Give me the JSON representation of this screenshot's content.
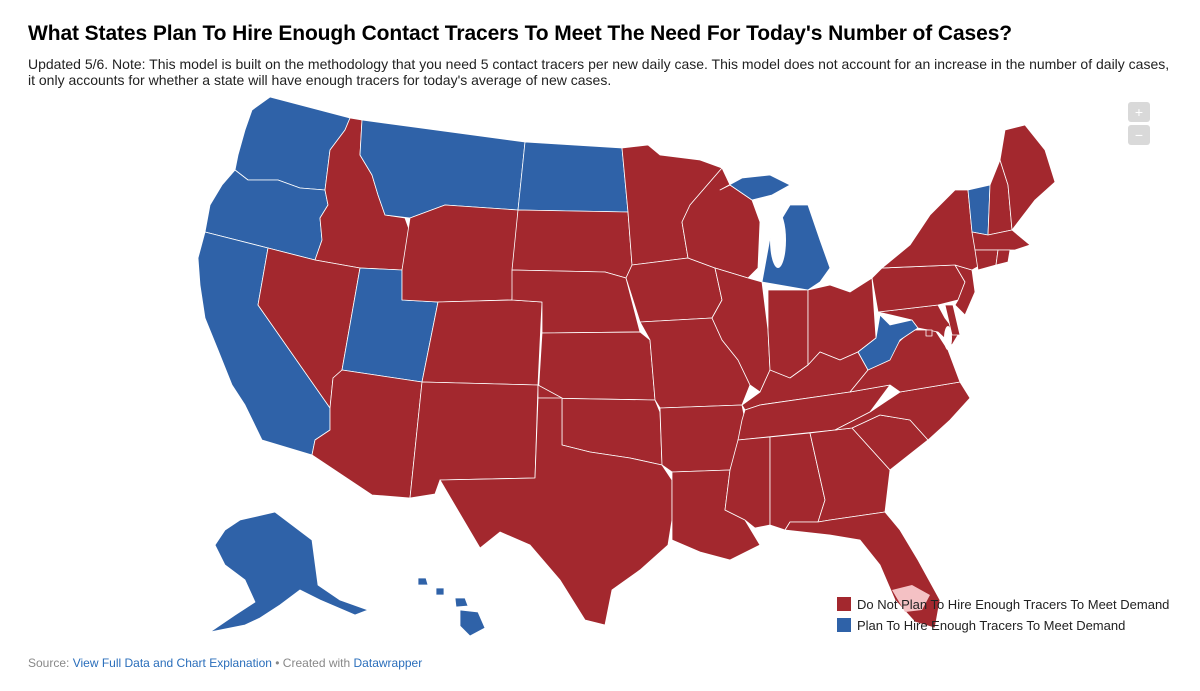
{
  "title": "What States Plan To Hire Enough Contact Tracers To Meet The Need For Today's Number of Cases?",
  "subtitle": "Updated 5/6. Note: This model is built on the methodology that you need 5 contact tracers per new daily case. This model does not account for an increase in the number of daily cases, it only accounts for whether a state will have enough tracers for today's average of new cases.",
  "colors": {
    "not_plan": "#a3282e",
    "plan": "#2f62a8",
    "border": "#ffffff",
    "zoom": "#d9d9d9"
  },
  "zoom": {
    "in_label": "+",
    "out_label": "−"
  },
  "legend": [
    {
      "label": "Do Not Plan To Hire Enough Tracers To Meet Demand",
      "color": "#a3282e"
    },
    {
      "label": "Plan To Hire Enough Tracers To Meet Demand",
      "color": "#2f62a8"
    }
  ],
  "states_planning": [
    "WA",
    "OR",
    "CA",
    "MT",
    "ND",
    "UT",
    "MI",
    "WV",
    "VT",
    "AK",
    "HI"
  ],
  "states_not_planning": [
    "ID",
    "NV",
    "AZ",
    "WY",
    "CO",
    "NM",
    "SD",
    "NE",
    "KS",
    "OK",
    "TX",
    "MN",
    "IA",
    "MO",
    "AR",
    "LA",
    "WI",
    "IL",
    "IN",
    "OH",
    "KY",
    "TN",
    "MS",
    "AL",
    "GA",
    "FL",
    "SC",
    "NC",
    "VA",
    "MD",
    "DE",
    "NJ",
    "PA",
    "NY",
    "CT",
    "RI",
    "MA",
    "NH",
    "ME",
    "DC"
  ],
  "footer": {
    "source_prefix": "Source: ",
    "source_link": "View Full Data and Chart Explanation",
    "separator": " • Created with ",
    "credit_link": "Datawrapper"
  }
}
